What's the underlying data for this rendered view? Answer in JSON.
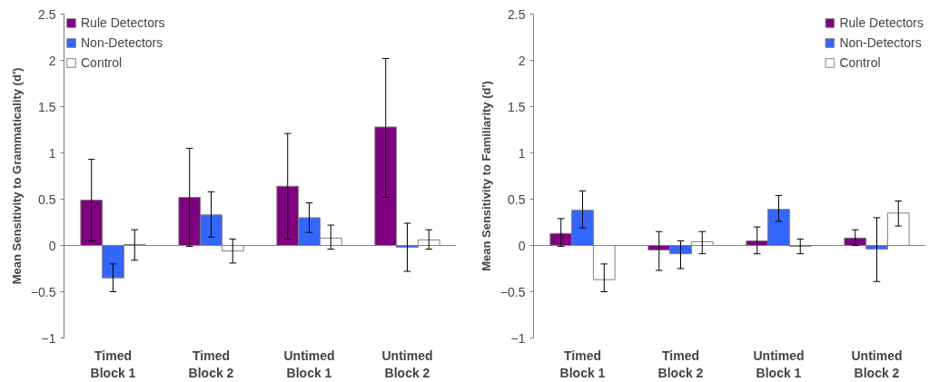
{
  "chart_data": [
    {
      "type": "bar",
      "ylabel": "Mean Sensitivity to Grammaticality (d')",
      "categories": [
        "Timed\nBlock 1",
        "Timed\nBlock 2",
        "Untimed\nBlock 1",
        "Untimed\nBlock 2"
      ],
      "ylim": [
        -1,
        2.5
      ],
      "yticks": [
        -1,
        -0.5,
        0,
        0.5,
        1,
        1.5,
        2,
        2.5
      ],
      "grid": false,
      "legend": "top left",
      "ref_lines": [
        {
          "axis": "y",
          "value": 0
        }
      ],
      "series": [
        {
          "name": "Rule Detectors",
          "color": "#800080",
          "values": [
            0.49,
            0.52,
            0.64,
            1.28
          ],
          "errors": [
            [
              0.05,
              0.93
            ],
            [
              -0.01,
              1.05
            ],
            [
              0.07,
              1.21
            ],
            [
              0.52,
              2.02
            ]
          ]
        },
        {
          "name": "Non-Detectors",
          "color": "#3366ff",
          "values": [
            -0.35,
            0.33,
            0.3,
            -0.02
          ],
          "errors": [
            [
              -0.5,
              -0.2
            ],
            [
              0.09,
              0.58
            ],
            [
              0.14,
              0.46
            ],
            [
              -0.28,
              0.24
            ]
          ]
        },
        {
          "name": "Control",
          "color": "#ffffff",
          "values": [
            0.01,
            -0.06,
            0.08,
            0.06
          ],
          "errors": [
            [
              -0.16,
              0.17
            ],
            [
              -0.19,
              0.07
            ],
            [
              -0.04,
              0.22
            ],
            [
              -0.04,
              0.17
            ]
          ]
        }
      ]
    },
    {
      "type": "bar",
      "ylabel": "Mean Sensitivity to Familiarity (d')",
      "categories": [
        "Timed\nBlock 1",
        "Timed\nBlock 2",
        "Untimed\nBlock 1",
        "Untimed\nBlock 2"
      ],
      "ylim": [
        -1,
        2.5
      ],
      "yticks": [
        -1,
        -0.5,
        0,
        0.5,
        1,
        1.5,
        2,
        2.5
      ],
      "grid": false,
      "legend": "top right",
      "ref_lines": [
        {
          "axis": "y",
          "value": 0
        }
      ],
      "series": [
        {
          "name": "Rule Detectors",
          "color": "#800080",
          "values": [
            0.13,
            -0.05,
            0.05,
            0.08
          ],
          "errors": [
            [
              -0.01,
              0.29
            ],
            [
              -0.27,
              0.15
            ],
            [
              -0.09,
              0.2
            ],
            [
              0.0,
              0.17
            ]
          ]
        },
        {
          "name": "Non-Detectors",
          "color": "#3366ff",
          "values": [
            0.38,
            -0.09,
            0.39,
            -0.04
          ],
          "errors": [
            [
              0.19,
              0.59
            ],
            [
              -0.25,
              0.05
            ],
            [
              0.26,
              0.54
            ],
            [
              -0.39,
              0.3
            ]
          ]
        },
        {
          "name": "Control",
          "color": "#ffffff",
          "values": [
            -0.37,
            0.04,
            -0.01,
            0.35
          ],
          "errors": [
            [
              -0.5,
              -0.2
            ],
            [
              -0.09,
              0.15
            ],
            [
              -0.09,
              0.07
            ],
            [
              0.21,
              0.48
            ]
          ]
        }
      ]
    }
  ]
}
